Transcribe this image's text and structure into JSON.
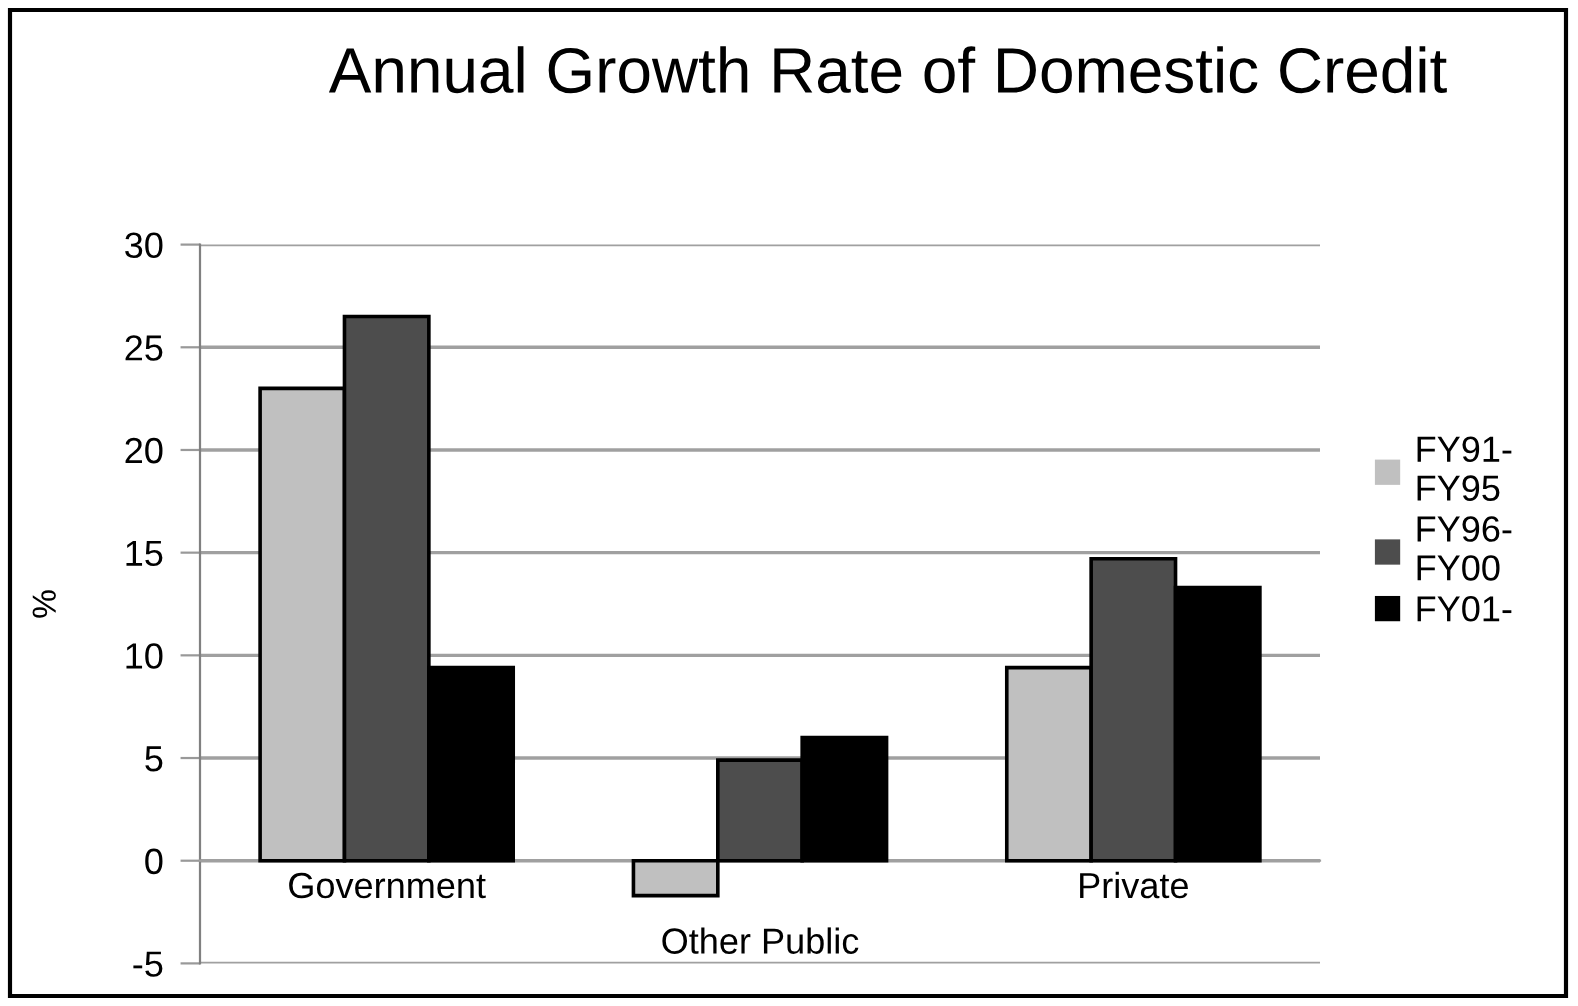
{
  "chart_data": {
    "type": "bar",
    "title": "Annual Growth Rate of Domestic Credit",
    "ylabel": "%",
    "categories": [
      "Government",
      "Other Public",
      "Private"
    ],
    "series": [
      {
        "name": "FY91-\nFY95",
        "color": "#c0c0c0",
        "values": [
          23.0,
          -1.7,
          9.4
        ]
      },
      {
        "name": "FY96-\nFY00",
        "color": "#4d4d4d",
        "values": [
          26.5,
          4.9,
          14.7
        ]
      },
      {
        "name": "FY01-",
        "color": "#000000",
        "values": [
          9.4,
          6.0,
          13.3
        ]
      }
    ],
    "ylim": [
      -5,
      30
    ],
    "yticks": [
      -5,
      0,
      5,
      10,
      15,
      20,
      25,
      30
    ],
    "grid": "y",
    "legend": "right"
  }
}
